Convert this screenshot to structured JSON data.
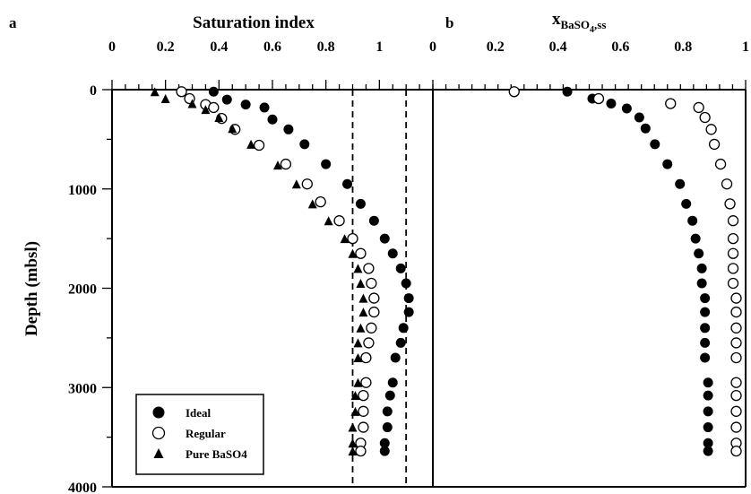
{
  "chart_data": [
    {
      "panel": "a",
      "type": "scatter",
      "xlabel": "Saturation index",
      "ylabel": "Depth (mbsl)",
      "xlim": [
        0,
        1.2
      ],
      "ylim": [
        4000,
        0
      ],
      "x_axis_position": "top",
      "x_ticks": [
        0,
        0.2,
        0.4,
        0.6,
        0.8,
        1
      ],
      "x_tick_labels": [
        "0",
        "0.2",
        "0.4",
        "0.6",
        "0.8",
        "1"
      ],
      "y_ticks": [
        0,
        1000,
        2000,
        3000,
        4000
      ],
      "y_tick_labels": [
        "0",
        "1000",
        "2000",
        "3000",
        "4000"
      ],
      "grid": false,
      "reference_lines_x": [
        0.9,
        1.1
      ],
      "legend": {
        "placement": "bottom-left",
        "entries": [
          {
            "label": "Ideal",
            "marker": "filled-circle"
          },
          {
            "label": "Regular",
            "marker": "open-circle"
          },
          {
            "label": "Pure BaSO4",
            "marker": "filled-triangle"
          }
        ]
      },
      "series": [
        {
          "name": "Ideal",
          "marker": "filled-circle",
          "points": [
            [
              0.38,
              20
            ],
            [
              0.43,
              100
            ],
            [
              0.5,
              150
            ],
            [
              0.57,
              180
            ],
            [
              0.6,
              300
            ],
            [
              0.66,
              400
            ],
            [
              0.72,
              550
            ],
            [
              0.8,
              750
            ],
            [
              0.88,
              950
            ],
            [
              0.93,
              1150
            ],
            [
              0.98,
              1320
            ],
            [
              1.02,
              1500
            ],
            [
              1.05,
              1650
            ],
            [
              1.08,
              1800
            ],
            [
              1.1,
              1950
            ],
            [
              1.11,
              2100
            ],
            [
              1.11,
              2240
            ],
            [
              1.09,
              2400
            ],
            [
              1.08,
              2550
            ],
            [
              1.06,
              2700
            ],
            [
              1.05,
              2950
            ],
            [
              1.04,
              3080
            ],
            [
              1.03,
              3240
            ],
            [
              1.03,
              3400
            ],
            [
              1.02,
              3560
            ],
            [
              1.02,
              3640
            ]
          ]
        },
        {
          "name": "Regular",
          "marker": "open-circle",
          "points": [
            [
              0.26,
              20
            ],
            [
              0.29,
              90
            ],
            [
              0.35,
              150
            ],
            [
              0.38,
              180
            ],
            [
              0.41,
              290
            ],
            [
              0.46,
              400
            ],
            [
              0.55,
              560
            ],
            [
              0.65,
              750
            ],
            [
              0.73,
              950
            ],
            [
              0.78,
              1130
            ],
            [
              0.85,
              1320
            ],
            [
              0.9,
              1500
            ],
            [
              0.93,
              1650
            ],
            [
              0.96,
              1800
            ],
            [
              0.97,
              1950
            ],
            [
              0.98,
              2100
            ],
            [
              0.98,
              2240
            ],
            [
              0.97,
              2400
            ],
            [
              0.96,
              2550
            ],
            [
              0.95,
              2700
            ],
            [
              0.95,
              2950
            ],
            [
              0.94,
              3080
            ],
            [
              0.94,
              3240
            ],
            [
              0.94,
              3400
            ],
            [
              0.93,
              3560
            ],
            [
              0.93,
              3640
            ]
          ]
        },
        {
          "name": "Pure BaSO4",
          "marker": "filled-triangle",
          "points": [
            [
              0.16,
              20
            ],
            [
              0.2,
              90
            ],
            [
              0.3,
              140
            ],
            [
              0.35,
              200
            ],
            [
              0.4,
              280
            ],
            [
              0.45,
              390
            ],
            [
              0.52,
              550
            ],
            [
              0.62,
              760
            ],
            [
              0.69,
              950
            ],
            [
              0.75,
              1150
            ],
            [
              0.81,
              1320
            ],
            [
              0.87,
              1500
            ],
            [
              0.9,
              1650
            ],
            [
              0.92,
              1800
            ],
            [
              0.93,
              1950
            ],
            [
              0.94,
              2100
            ],
            [
              0.94,
              2240
            ],
            [
              0.93,
              2400
            ],
            [
              0.92,
              2550
            ],
            [
              0.92,
              2700
            ],
            [
              0.92,
              2950
            ],
            [
              0.91,
              3080
            ],
            [
              0.91,
              3240
            ],
            [
              0.9,
              3400
            ],
            [
              0.9,
              3560
            ],
            [
              0.9,
              3640
            ]
          ]
        }
      ]
    },
    {
      "panel": "b",
      "type": "scatter",
      "xlabel": "x",
      "xlabel_subscript": "BaSO",
      "xlabel_subscript_small": "4",
      "xlabel_subscript_end": ",ss",
      "xlim": [
        0,
        1
      ],
      "ylim": [
        4000,
        0
      ],
      "x_axis_position": "top",
      "x_ticks": [
        0,
        0.2,
        0.4,
        0.6,
        0.8,
        1
      ],
      "x_tick_labels": [
        "0",
        "0.2",
        "0.4",
        "0.6",
        "0.8",
        "1"
      ],
      "grid": false,
      "series": [
        {
          "name": "Ideal",
          "marker": "filled-circle",
          "points": [
            [
              0.43,
              20
            ],
            [
              0.51,
              90
            ],
            [
              0.57,
              140
            ],
            [
              0.62,
              190
            ],
            [
              0.66,
              280
            ],
            [
              0.68,
              390
            ],
            [
              0.71,
              550
            ],
            [
              0.75,
              750
            ],
            [
              0.79,
              950
            ],
            [
              0.81,
              1150
            ],
            [
              0.83,
              1320
            ],
            [
              0.84,
              1500
            ],
            [
              0.85,
              1650
            ],
            [
              0.86,
              1800
            ],
            [
              0.86,
              1950
            ],
            [
              0.87,
              2100
            ],
            [
              0.87,
              2240
            ],
            [
              0.87,
              2400
            ],
            [
              0.87,
              2550
            ],
            [
              0.87,
              2700
            ],
            [
              0.88,
              2950
            ],
            [
              0.88,
              3080
            ],
            [
              0.88,
              3240
            ],
            [
              0.88,
              3400
            ],
            [
              0.88,
              3560
            ],
            [
              0.88,
              3640
            ]
          ]
        },
        {
          "name": "Regular",
          "marker": "open-circle",
          "points": [
            [
              0.26,
              20
            ],
            [
              0.53,
              90
            ],
            [
              0.76,
              140
            ],
            [
              0.85,
              180
            ],
            [
              0.87,
              280
            ],
            [
              0.89,
              400
            ],
            [
              0.9,
              550
            ],
            [
              0.92,
              750
            ],
            [
              0.94,
              950
            ],
            [
              0.95,
              1150
            ],
            [
              0.96,
              1320
            ],
            [
              0.96,
              1500
            ],
            [
              0.96,
              1650
            ],
            [
              0.96,
              1800
            ],
            [
              0.96,
              1950
            ],
            [
              0.97,
              2100
            ],
            [
              0.97,
              2240
            ],
            [
              0.97,
              2400
            ],
            [
              0.97,
              2550
            ],
            [
              0.97,
              2700
            ],
            [
              0.97,
              2950
            ],
            [
              0.97,
              3080
            ],
            [
              0.97,
              3240
            ],
            [
              0.97,
              3400
            ],
            [
              0.97,
              3560
            ],
            [
              0.97,
              3640
            ]
          ]
        }
      ]
    }
  ]
}
